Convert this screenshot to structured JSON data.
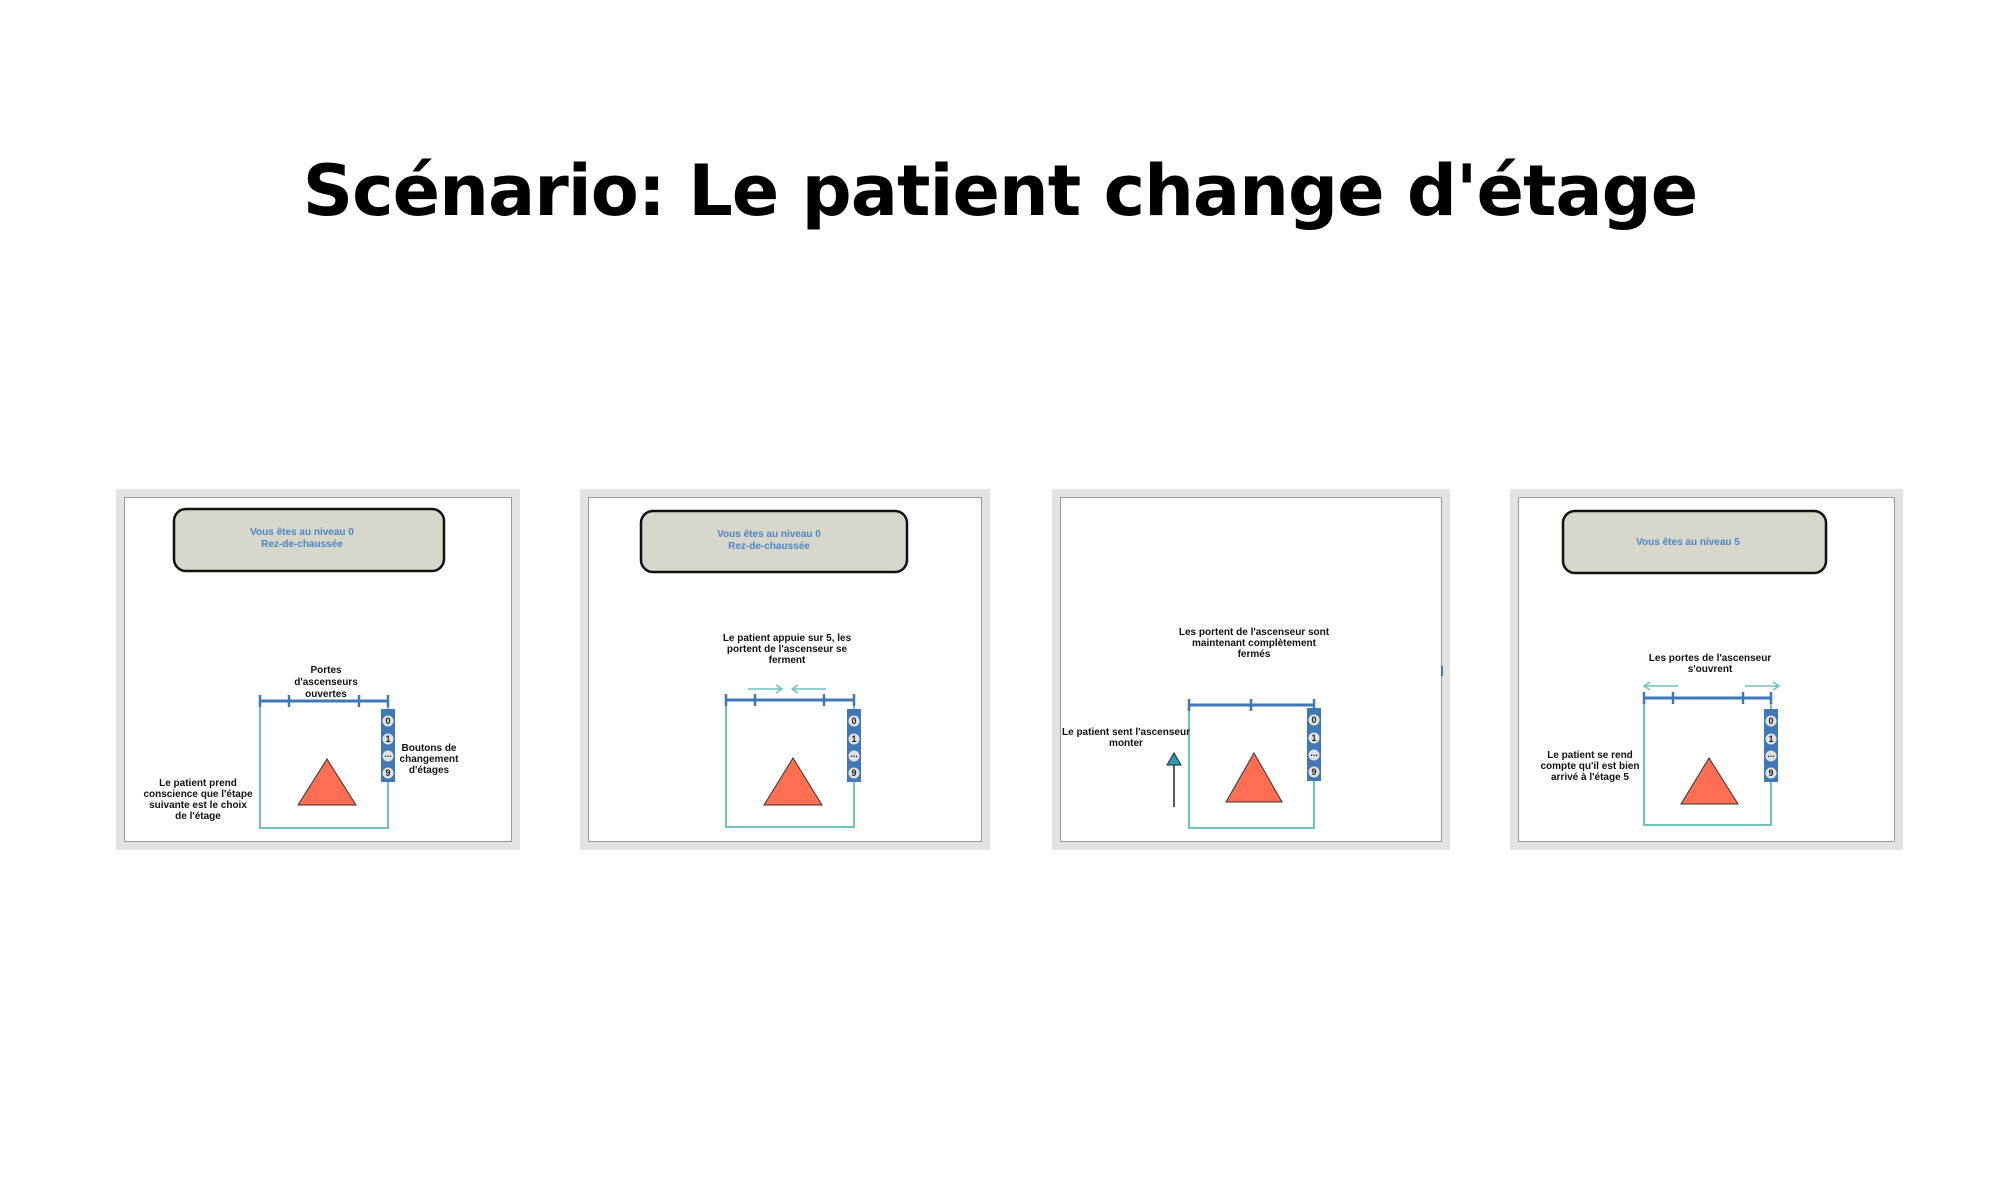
{
  "title": "Scénario: Le patient change d'étage",
  "colors": {
    "banner_fill": "#d8d7cb",
    "banner_text": "#4a86c5",
    "door": "#3f78b5",
    "box": "#6dc3bd",
    "triangle": "#fe6e52",
    "up_arrow": "#2e9bb5"
  },
  "buttons": [
    "0",
    "1",
    "...",
    "9"
  ],
  "panels": [
    {
      "banner": [
        "Vous êtes au niveau 0",
        "Rez-de-chaussée"
      ],
      "door_label": [
        "Portes",
        "d'ascenseurs",
        "ouvertes"
      ],
      "buttons_label": [
        "Boutons de",
        "changement",
        "d'étages"
      ],
      "patient_label": [
        "Le patient prend",
        "conscience que l'étape",
        "suivante est le choix",
        "de l'étage"
      ]
    },
    {
      "banner": [
        "Vous êtes au niveau 0",
        "Rez-de-chaussée"
      ],
      "caption": [
        "Le patient appuie sur 5, les",
        "portent de l'ascenseur se",
        "ferment"
      ]
    },
    {
      "caption": [
        "Les portent de l'ascenseur sont",
        "maintenant complètement",
        "fermés"
      ],
      "patient_label": [
        "Le patient sent l'ascenseur",
        "monter"
      ]
    },
    {
      "banner": [
        "Vous êtes au niveau 5"
      ],
      "caption": [
        "Les portes de l'ascenseur",
        "s'ouvrent"
      ],
      "patient_label": [
        "Le patient se rend",
        "compte qu'il est bien",
        "arrivé à l'étage 5"
      ]
    }
  ]
}
